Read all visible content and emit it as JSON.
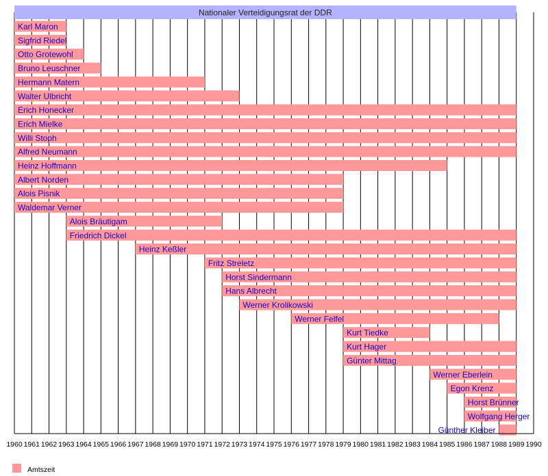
{
  "chart_data": {
    "type": "timeline",
    "title": "Nationaler Verteidigungsrat der DDR",
    "title_span": [
      1960,
      1989
    ],
    "xlim": [
      1960,
      1990
    ],
    "x_ticks": [
      1960,
      1961,
      1962,
      1963,
      1964,
      1965,
      1966,
      1967,
      1968,
      1969,
      1970,
      1971,
      1972,
      1973,
      1974,
      1975,
      1976,
      1977,
      1978,
      1979,
      1980,
      1981,
      1982,
      1983,
      1984,
      1985,
      1986,
      1987,
      1988,
      1989,
      1990
    ],
    "grid": true,
    "legend": {
      "position": "bottom-left",
      "entries": [
        {
          "label": "Amtszeit",
          "color": "#ff9999"
        }
      ]
    },
    "colors": {
      "bar": "#ff9999",
      "title_bar": "#b3b3ff",
      "label": "#1a00c8"
    },
    "members": [
      {
        "name": "Karl Maron",
        "start": 1960,
        "end": 1963
      },
      {
        "name": "Sigfrid Riedel",
        "start": 1960,
        "end": 1963
      },
      {
        "name": "Otto Grotewohl",
        "start": 1960,
        "end": 1964
      },
      {
        "name": "Bruno Leuschner",
        "start": 1960,
        "end": 1965
      },
      {
        "name": "Hermann Matern",
        "start": 1960,
        "end": 1971
      },
      {
        "name": "Walter Ulbricht",
        "start": 1960,
        "end": 1973
      },
      {
        "name": "Erich Honecker",
        "start": 1960,
        "end": 1989
      },
      {
        "name": "Erich Mielke",
        "start": 1960,
        "end": 1989
      },
      {
        "name": "Willi Stoph",
        "start": 1960,
        "end": 1989
      },
      {
        "name": "Alfred Neumann",
        "start": 1960,
        "end": 1989
      },
      {
        "name": "Heinz Hoffmann",
        "start": 1960,
        "end": 1985
      },
      {
        "name": "Albert Norden",
        "start": 1960,
        "end": 1979
      },
      {
        "name": "Alois Pisnik",
        "start": 1960,
        "end": 1979
      },
      {
        "name": "Waldemar Verner",
        "start": 1960,
        "end": 1979
      },
      {
        "name": "Alois Bräutigam",
        "start": 1963,
        "end": 1972
      },
      {
        "name": "Friedrich Dickel",
        "start": 1963,
        "end": 1989
      },
      {
        "name": "Heinz Keßler",
        "start": 1967,
        "end": 1989
      },
      {
        "name": "Fritz Streletz",
        "start": 1971,
        "end": 1989
      },
      {
        "name": "Horst Sindermann",
        "start": 1972,
        "end": 1989
      },
      {
        "name": "Hans Albrecht",
        "start": 1972,
        "end": 1989
      },
      {
        "name": "Werner Krolikowski",
        "start": 1973,
        "end": 1989
      },
      {
        "name": "Werner Felfel",
        "start": 1976,
        "end": 1988
      },
      {
        "name": "Kurt Tiedke",
        "start": 1979,
        "end": 1984
      },
      {
        "name": "Kurt Hager",
        "start": 1979,
        "end": 1989
      },
      {
        "name": "Günter Mittag",
        "start": 1979,
        "end": 1989
      },
      {
        "name": "Werner Eberlein",
        "start": 1984,
        "end": 1989
      },
      {
        "name": "Egon Krenz",
        "start": 1985,
        "end": 1989
      },
      {
        "name": "Horst Brünner",
        "start": 1986,
        "end": 1989
      },
      {
        "name": "Wolfgang Herger",
        "start": 1986,
        "end": 1989
      },
      {
        "name": "Günther Kleiber",
        "start": 1988,
        "end": 1989,
        "label_before": true
      }
    ]
  }
}
